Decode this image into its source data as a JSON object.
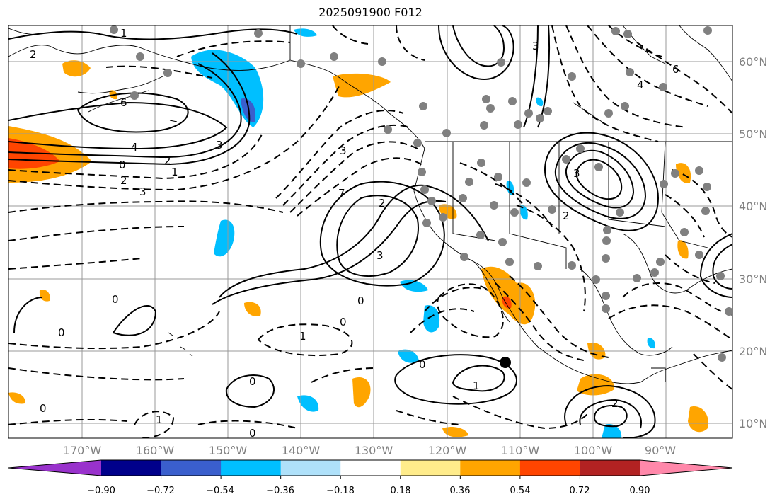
{
  "title": "2025091900 F012",
  "latitude_labels": [
    "60°N",
    "50°N",
    "40°N",
    "30°N",
    "20°N",
    "10°N"
  ],
  "longitude_labels": [
    "170°W",
    "160°W",
    "150°W",
    "140°W",
    "130°W",
    "120°W",
    "110°W",
    "100°W",
    "90°W"
  ],
  "colorbar": {
    "ticks": [
      "−0.90",
      "−0.72",
      "−0.54",
      "−0.36",
      "−0.18",
      "0.18",
      "0.36",
      "0.54",
      "0.72",
      "0.90"
    ],
    "colors": [
      "#9932cc",
      "#00008b",
      "#3a5fcd",
      "#00bfff",
      "#afe1fa",
      "#ffffff",
      "#ffec8b",
      "#ffa500",
      "#ff4500",
      "#b22222",
      "#ff88aa"
    ]
  },
  "contour_labels": [
    "2",
    "1",
    "6",
    "4",
    "2",
    "3",
    "0",
    "2",
    "3",
    "1",
    "3",
    "2",
    "3",
    "0",
    "0",
    "0",
    "1",
    "0",
    "0",
    "1",
    "2",
    "0",
    "1",
    "0",
    "0",
    "7",
    "3",
    "6",
    "4",
    "2",
    "3"
  ],
  "colors": {
    "land_line": "#000000",
    "grid": "#999999",
    "station_dot": "#808080"
  }
}
